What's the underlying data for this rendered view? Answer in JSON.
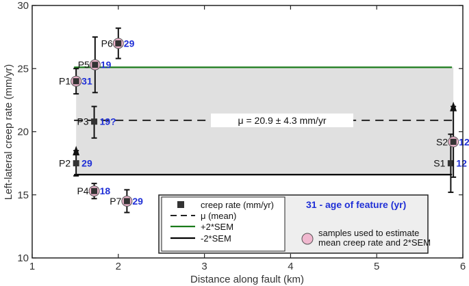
{
  "chart_data": {
    "type": "scatter",
    "xlabel": "Distance along fault (km)",
    "ylabel": "Left-lateral creep rate (mm/yr)",
    "xlim": [
      1,
      6
    ],
    "ylim": [
      10,
      30
    ],
    "xticks": [
      "1",
      "2",
      "3",
      "4",
      "5",
      "6"
    ],
    "yticks": [
      "10",
      "15",
      "20",
      "25",
      "30"
    ],
    "grid": false,
    "points": [
      {
        "label": "P1",
        "x": 1.51,
        "y": 24.0,
        "err_low": 23.0,
        "err_high": 25.0,
        "age": "31",
        "used_for_mean": true,
        "arrow": false
      },
      {
        "label": "P2",
        "x": 1.51,
        "y": 17.5,
        "err_low": 16.5,
        "err_high": 18.5,
        "age": "29",
        "used_for_mean": false,
        "arrow": true
      },
      {
        "label": "P3",
        "x": 1.72,
        "y": 20.8,
        "err_low": 19.5,
        "err_high": 22.0,
        "age": "19?",
        "used_for_mean": false,
        "arrow": false
      },
      {
        "label": "P4",
        "x": 1.72,
        "y": 15.3,
        "err_low": 14.7,
        "err_high": 15.9,
        "age": "18",
        "used_for_mean": true,
        "arrow": false
      },
      {
        "label": "P5",
        "x": 1.73,
        "y": 25.3,
        "err_low": 23.1,
        "err_high": 27.5,
        "age": "19",
        "used_for_mean": true,
        "arrow": false
      },
      {
        "label": "P6",
        "x": 2.0,
        "y": 27.0,
        "err_low": 25.8,
        "err_high": 28.2,
        "age": "29",
        "used_for_mean": true,
        "arrow": false
      },
      {
        "label": "P7",
        "x": 2.1,
        "y": 14.5,
        "err_low": 13.6,
        "err_high": 15.4,
        "age": "29",
        "used_for_mean": true,
        "arrow": false
      },
      {
        "label": "S1",
        "x": 5.86,
        "y": 17.5,
        "err_low": 15.2,
        "err_high": 19.8,
        "age": "12",
        "used_for_mean": false,
        "arrow": false
      },
      {
        "label": "S2",
        "x": 5.89,
        "y": 19.2,
        "err_low": 16.4,
        "err_high": 22.0,
        "age": "12",
        "used_for_mean": true,
        "arrow": true
      }
    ],
    "mean": 20.9,
    "plus_2sem": 25.1,
    "minus_2sem": 16.6,
    "band_x": [
      1.51,
      5.89
    ],
    "mean_annotation": "μ = 20.9 ± 4.3 mm/yr",
    "band_color": "#e0e0e0",
    "plus_color": "#1a7a1a",
    "minus_color": "#000000",
    "marker_color": "#333333",
    "highlight_color": "#f0b8cf",
    "age_color": "#1f2fd6",
    "legend": {
      "placement": "bottom-center",
      "entries": [
        {
          "text": "creep rate (mm/yr)",
          "kind": "square"
        },
        {
          "text": "μ (mean)",
          "kind": "dash"
        },
        {
          "text": "+2*SEM",
          "kind": "green-line"
        },
        {
          "text": "-2*SEM",
          "kind": "black-line"
        }
      ],
      "age_note": "31 - age of feature (yr)",
      "highlight_note": [
        "samples used to estimate",
        "mean creep rate and 2*SEM"
      ]
    }
  }
}
